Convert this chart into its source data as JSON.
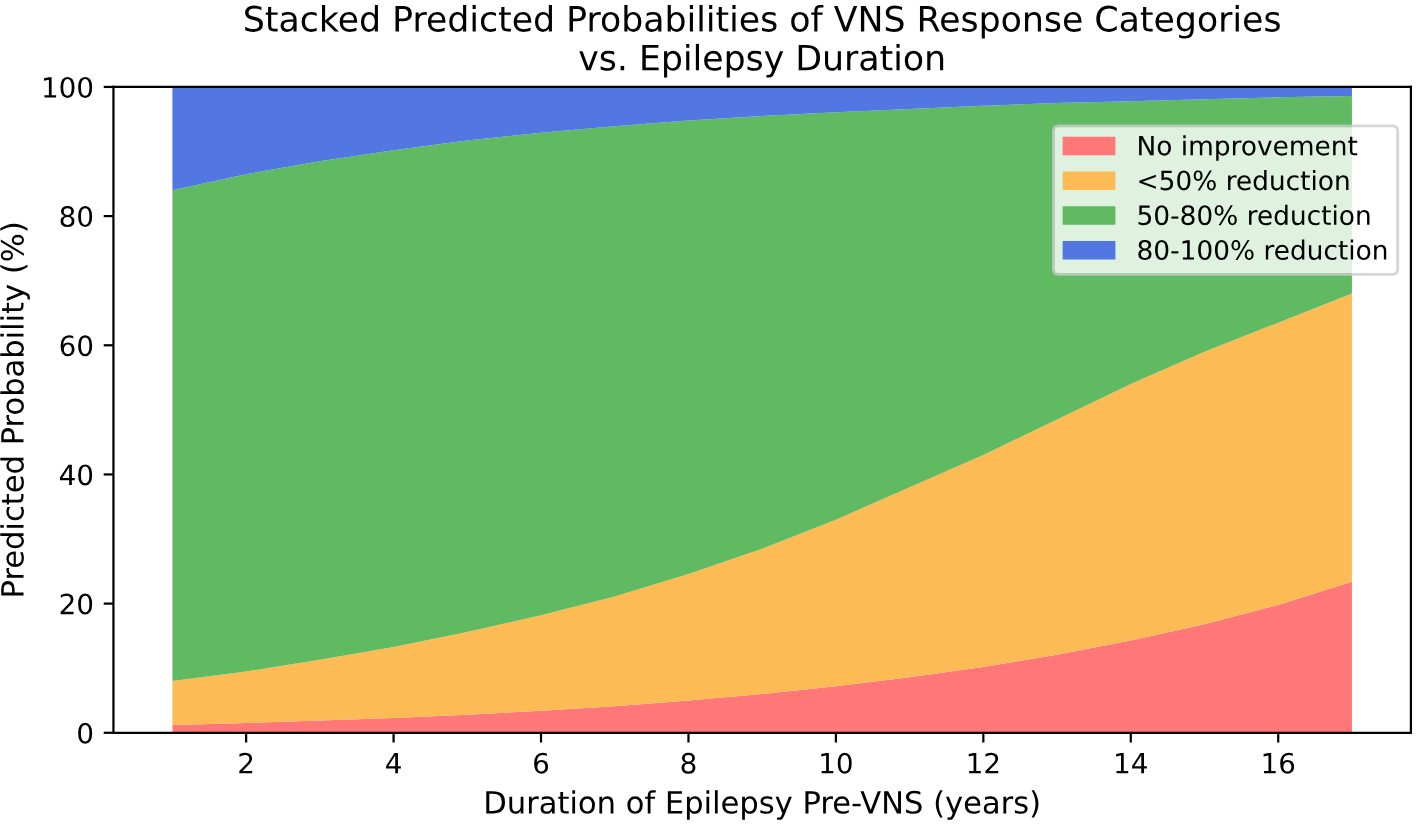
{
  "chart_data": {
    "type": "area",
    "stacked": true,
    "title": "Stacked Predicted Probabilities of VNS Response Categories\nvs. Epilepsy Duration",
    "xlabel": "Duration of Epilepsy Pre-VNS (years)",
    "ylabel": "Predicted Probability (%)",
    "x": [
      1,
      2,
      3,
      4,
      5,
      6,
      7,
      8,
      9,
      10,
      11,
      12,
      13,
      14,
      15,
      16,
      17
    ],
    "series": [
      {
        "name": "No improvement",
        "color": "#ff7777",
        "values": [
          1.2,
          1.5,
          1.9,
          2.3,
          2.8,
          3.4,
          4.1,
          5.0,
          6.0,
          7.2,
          8.6,
          10.2,
          12.1,
          14.3,
          16.8,
          19.8,
          23.4
        ]
      },
      {
        "name": "<50% reduction",
        "color": "#fdbb55",
        "values": [
          6.8,
          8.0,
          9.4,
          11.0,
          12.8,
          14.8,
          17.0,
          19.6,
          22.5,
          25.8,
          29.4,
          32.8,
          36.4,
          39.7,
          42.2,
          43.7,
          44.6
        ]
      },
      {
        "name": "50-80% reduction",
        "color": "#5fba62",
        "values": [
          76,
          77,
          77.2,
          76.9,
          76.1,
          74.7,
          72.8,
          70.2,
          67,
          63.1,
          58.6,
          54.1,
          49,
          43.8,
          39.1,
          34.9,
          30.6
        ]
      },
      {
        "name": "80-100% reduction",
        "color": "#5277e3",
        "values": [
          16,
          13.5,
          11.5,
          9.8,
          8.3,
          7.1,
          6.1,
          5.2,
          4.5,
          3.9,
          3.4,
          2.9,
          2.5,
          2.2,
          1.9,
          1.6,
          1.4
        ]
      }
    ],
    "xlim": [
      0.2,
      17.8
    ],
    "xticks": [
      2,
      4,
      6,
      8,
      10,
      12,
      14,
      16
    ],
    "ylim": [
      0,
      100
    ],
    "yticks": [
      0,
      20,
      40,
      60,
      80,
      100
    ],
    "grid": false,
    "legend": "top right"
  }
}
